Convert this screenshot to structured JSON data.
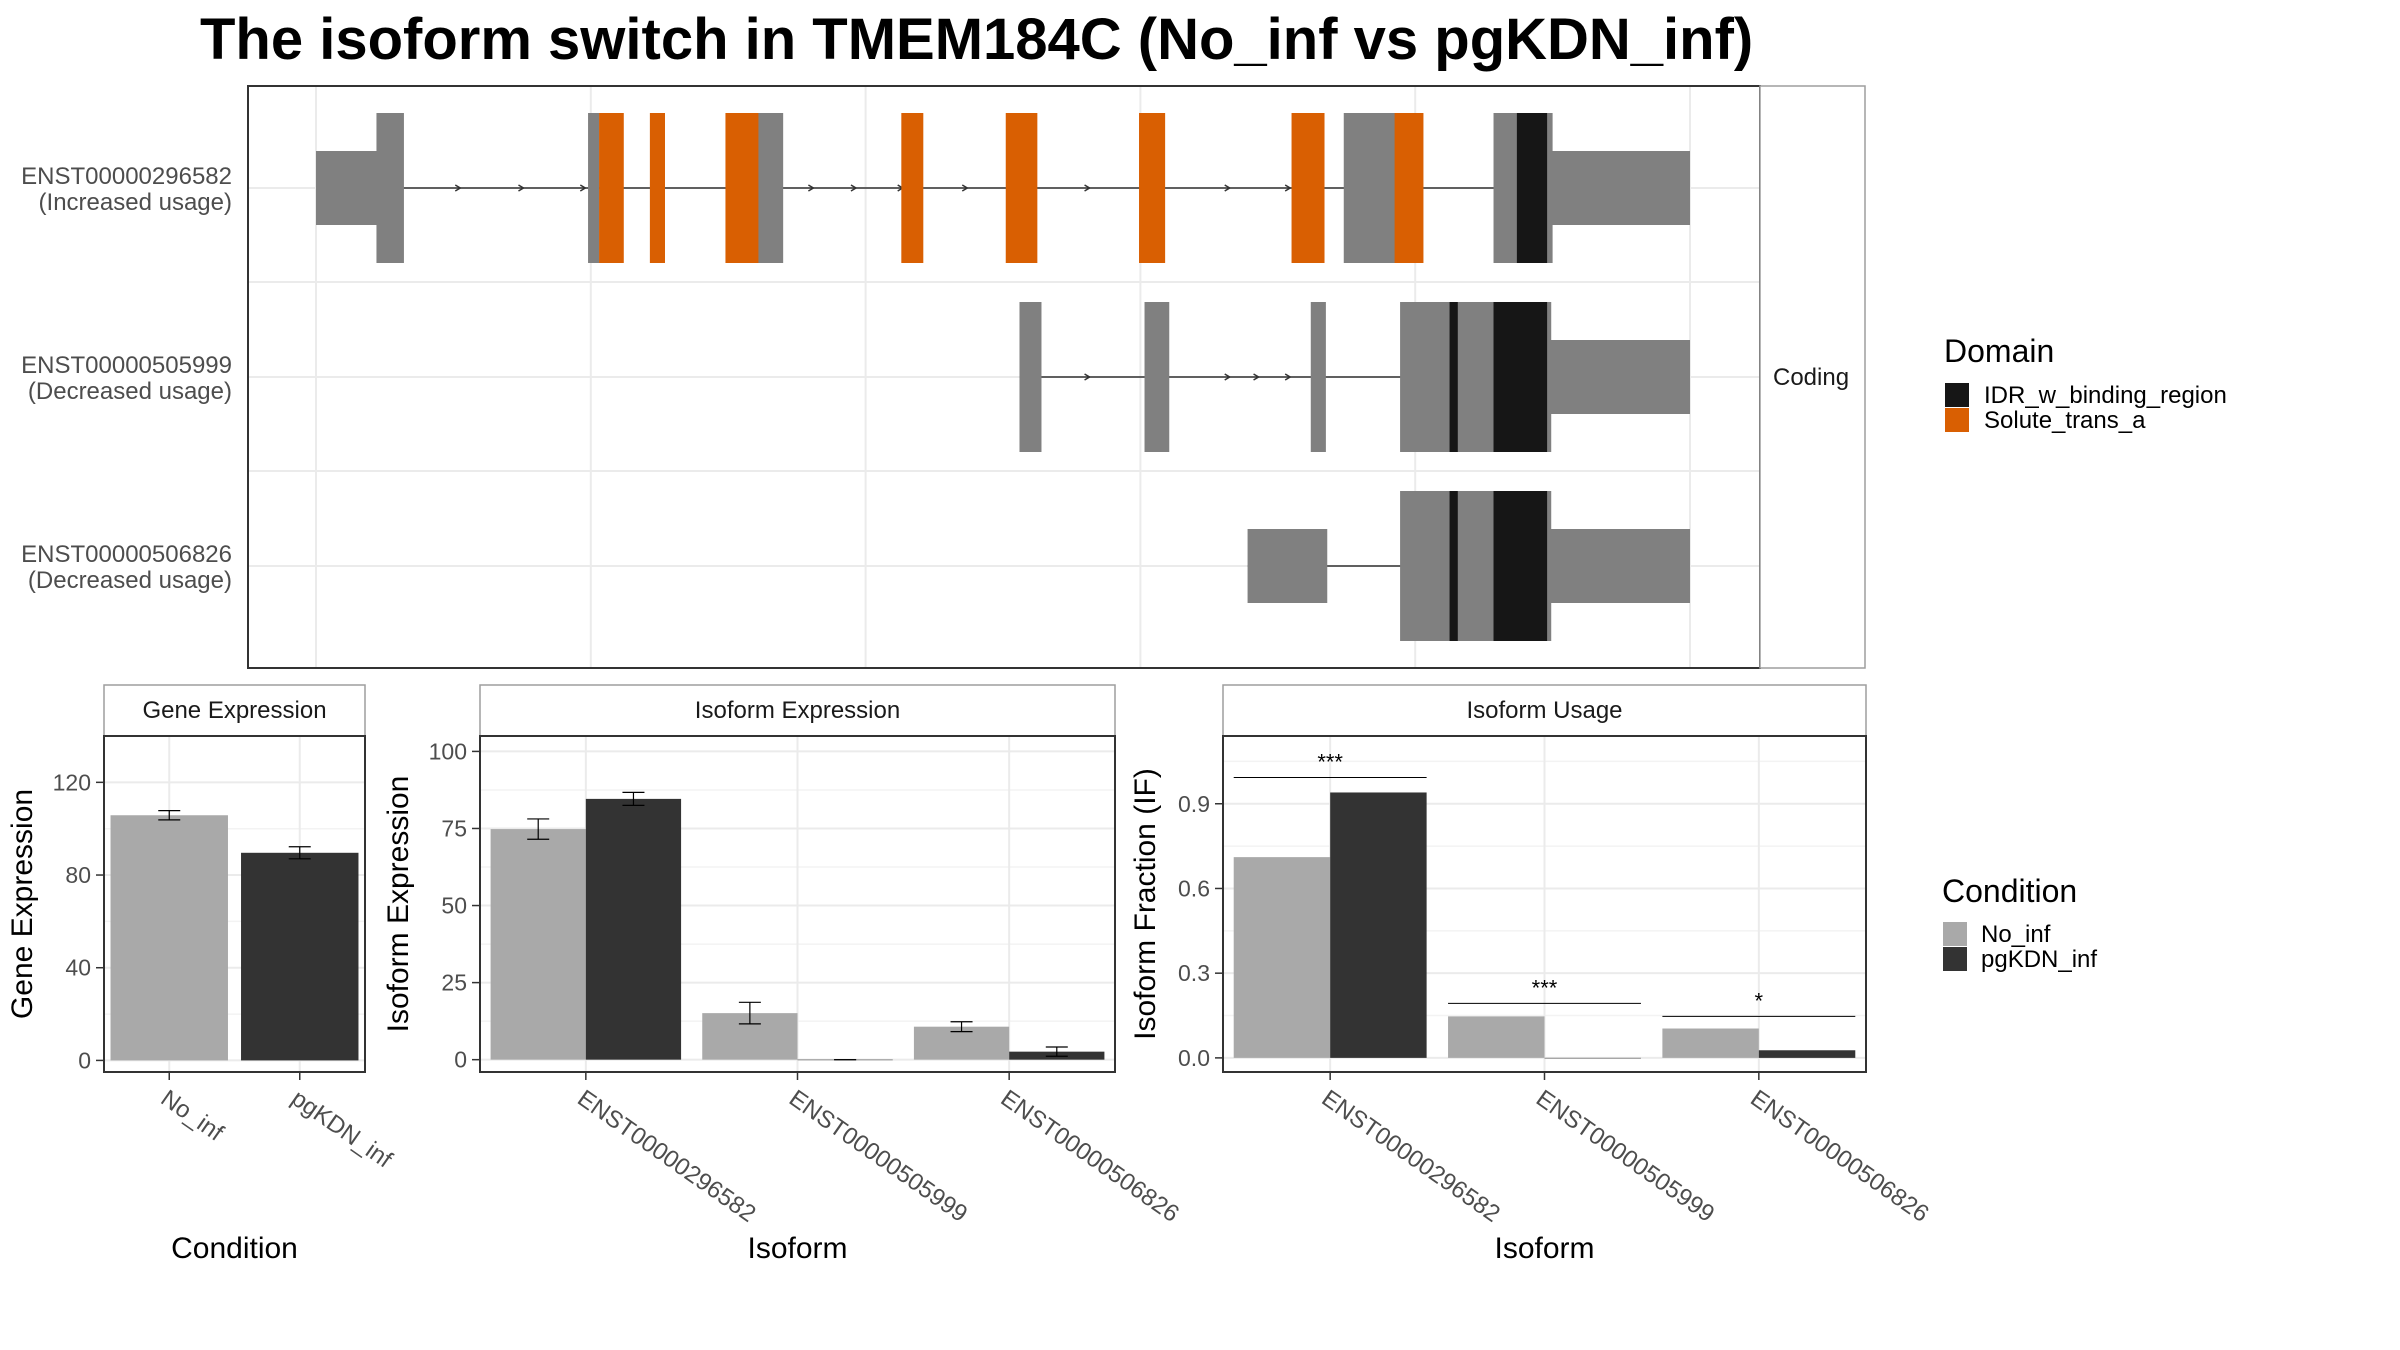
{
  "title": "The isoform switch in TMEM184C (No_inf vs pgKDN_inf)",
  "colors": {
    "no_inf": "#a9a9a9",
    "pgkdn_inf": "#333333",
    "exon": "#808080",
    "idr_w_binding_region": "#161616",
    "solute_trans_a": "#d95f02",
    "grid": "#ebebeb",
    "panel_border": "#333333",
    "strip_border": "#9e9e9e"
  },
  "chart_data": [
    {
      "type": "gene-structure",
      "strip_label": "Coding",
      "x_range": [
        0,
        1000
      ],
      "isoforms": [
        {
          "name": "ENST00000296582",
          "label_line1": "ENST00000296582",
          "label_line2": "(Increased usage)",
          "exons": [
            {
              "start": 0,
              "end": 49,
              "kind": "utr"
            },
            {
              "start": 44,
              "end": 64,
              "kind": "cds"
            },
            {
              "start": 198,
              "end": 206,
              "kind": "cds"
            },
            {
              "start": 318,
              "end": 340,
              "kind": "cds"
            },
            {
              "start": 748,
              "end": 790,
              "kind": "cds"
            },
            {
              "start": 857,
              "end": 900,
              "kind": "cds"
            },
            {
              "start": 893,
              "end": 1000,
              "kind": "utr"
            }
          ],
          "domains": [
            {
              "start": 206,
              "end": 224,
              "domain": "Solute_trans_a"
            },
            {
              "start": 243,
              "end": 254,
              "domain": "Solute_trans_a"
            },
            {
              "start": 298,
              "end": 322,
              "domain": "Solute_trans_a"
            },
            {
              "start": 426,
              "end": 442,
              "domain": "Solute_trans_a"
            },
            {
              "start": 502,
              "end": 525,
              "domain": "Solute_trans_a"
            },
            {
              "start": 599,
              "end": 618,
              "domain": "Solute_trans_a"
            },
            {
              "start": 710,
              "end": 734,
              "domain": "Solute_trans_a"
            },
            {
              "start": 785,
              "end": 806,
              "domain": "Solute_trans_a"
            },
            {
              "start": 874,
              "end": 896,
              "domain": "IDR_w_binding_region"
            }
          ],
          "arrows": [
            105,
            151,
            196,
            362,
            393,
            427,
            474,
            511,
            563,
            665,
            709
          ]
        },
        {
          "name": "ENST00000505999",
          "label_line1": "ENST00000505999",
          "label_line2": "(Decreased usage)",
          "exons": [
            {
              "start": 512,
              "end": 528,
              "kind": "cds"
            },
            {
              "start": 603,
              "end": 621,
              "kind": "cds"
            },
            {
              "start": 724,
              "end": 735,
              "kind": "cds"
            },
            {
              "start": 789,
              "end": 803,
              "kind": "cds"
            },
            {
              "start": 797,
              "end": 899,
              "kind": "cds"
            },
            {
              "start": 893,
              "end": 1000,
              "kind": "utr"
            }
          ],
          "domains": [
            {
              "start": 825,
              "end": 831,
              "domain": "IDR_w_binding_region"
            },
            {
              "start": 857,
              "end": 896,
              "domain": "IDR_w_binding_region"
            }
          ],
          "arrows": [
            563,
            665,
            686,
            709
          ]
        },
        {
          "name": "ENST00000506826",
          "label_line1": "ENST00000506826",
          "label_line2": "(Decreased usage)",
          "exons": [
            {
              "start": 678,
              "end": 736,
              "kind": "utr"
            },
            {
              "start": 789,
              "end": 803,
              "kind": "cds"
            },
            {
              "start": 797,
              "end": 899,
              "kind": "cds"
            },
            {
              "start": 893,
              "end": 1000,
              "kind": "utr"
            }
          ],
          "domains": [
            {
              "start": 825,
              "end": 831,
              "domain": "IDR_w_binding_region"
            },
            {
              "start": 857,
              "end": 896,
              "domain": "IDR_w_binding_region"
            }
          ],
          "arrows": []
        }
      ],
      "legend": {
        "title": "Domain",
        "entries": [
          "IDR_w_binding_region",
          "Solute_trans_a"
        ]
      }
    },
    {
      "type": "bar",
      "strip_label": "Gene Expression",
      "xlabel": "Condition",
      "ylabel": "Gene Expression",
      "categories": [
        "No_inf",
        "pgKDN_inf"
      ],
      "values": [
        105.8,
        89.6
      ],
      "errors": [
        2.0,
        2.6
      ],
      "ylim": [
        -5,
        140
      ],
      "yticks": [
        0,
        40,
        80,
        120
      ]
    },
    {
      "type": "bar",
      "strip_label": "Isoform Expression",
      "xlabel": "Isoform",
      "ylabel": "Isoform Expression",
      "categories": [
        "ENST00000296582",
        "ENST00000505999",
        "ENST00000506826"
      ],
      "series": [
        {
          "name": "No_inf",
          "values": [
            74.8,
            15.1,
            10.7
          ],
          "errors": [
            3.3,
            3.5,
            1.6
          ]
        },
        {
          "name": "pgKDN_inf",
          "values": [
            84.6,
            0.0,
            2.6
          ],
          "errors": [
            2.1,
            0.0,
            1.5
          ]
        }
      ],
      "ylim": [
        -4,
        105
      ],
      "yticks": [
        0,
        25,
        50,
        75,
        100
      ]
    },
    {
      "type": "bar",
      "strip_label": "Isoform Usage",
      "xlabel": "Isoform",
      "ylabel": "Isoform Fraction (IF)",
      "categories": [
        "ENST00000296582",
        "ENST00000505999",
        "ENST00000506826"
      ],
      "series": [
        {
          "name": "No_inf",
          "values": [
            0.711,
            0.147,
            0.104
          ]
        },
        {
          "name": "pgKDN_inf",
          "values": [
            0.94,
            0.0,
            0.027
          ]
        }
      ],
      "significance": [
        "***",
        "***",
        "*"
      ],
      "significance_y": [
        0.993,
        0.193,
        0.147
      ],
      "ylim": [
        -0.05,
        1.14
      ],
      "yticks": [
        0.0,
        0.3,
        0.6,
        0.9
      ],
      "ytick_labels": [
        "0.0",
        "0.3",
        "0.6",
        "0.9"
      ]
    }
  ],
  "condition_legend": {
    "title": "Condition",
    "entries": [
      "No_inf",
      "pgKDN_inf"
    ]
  }
}
